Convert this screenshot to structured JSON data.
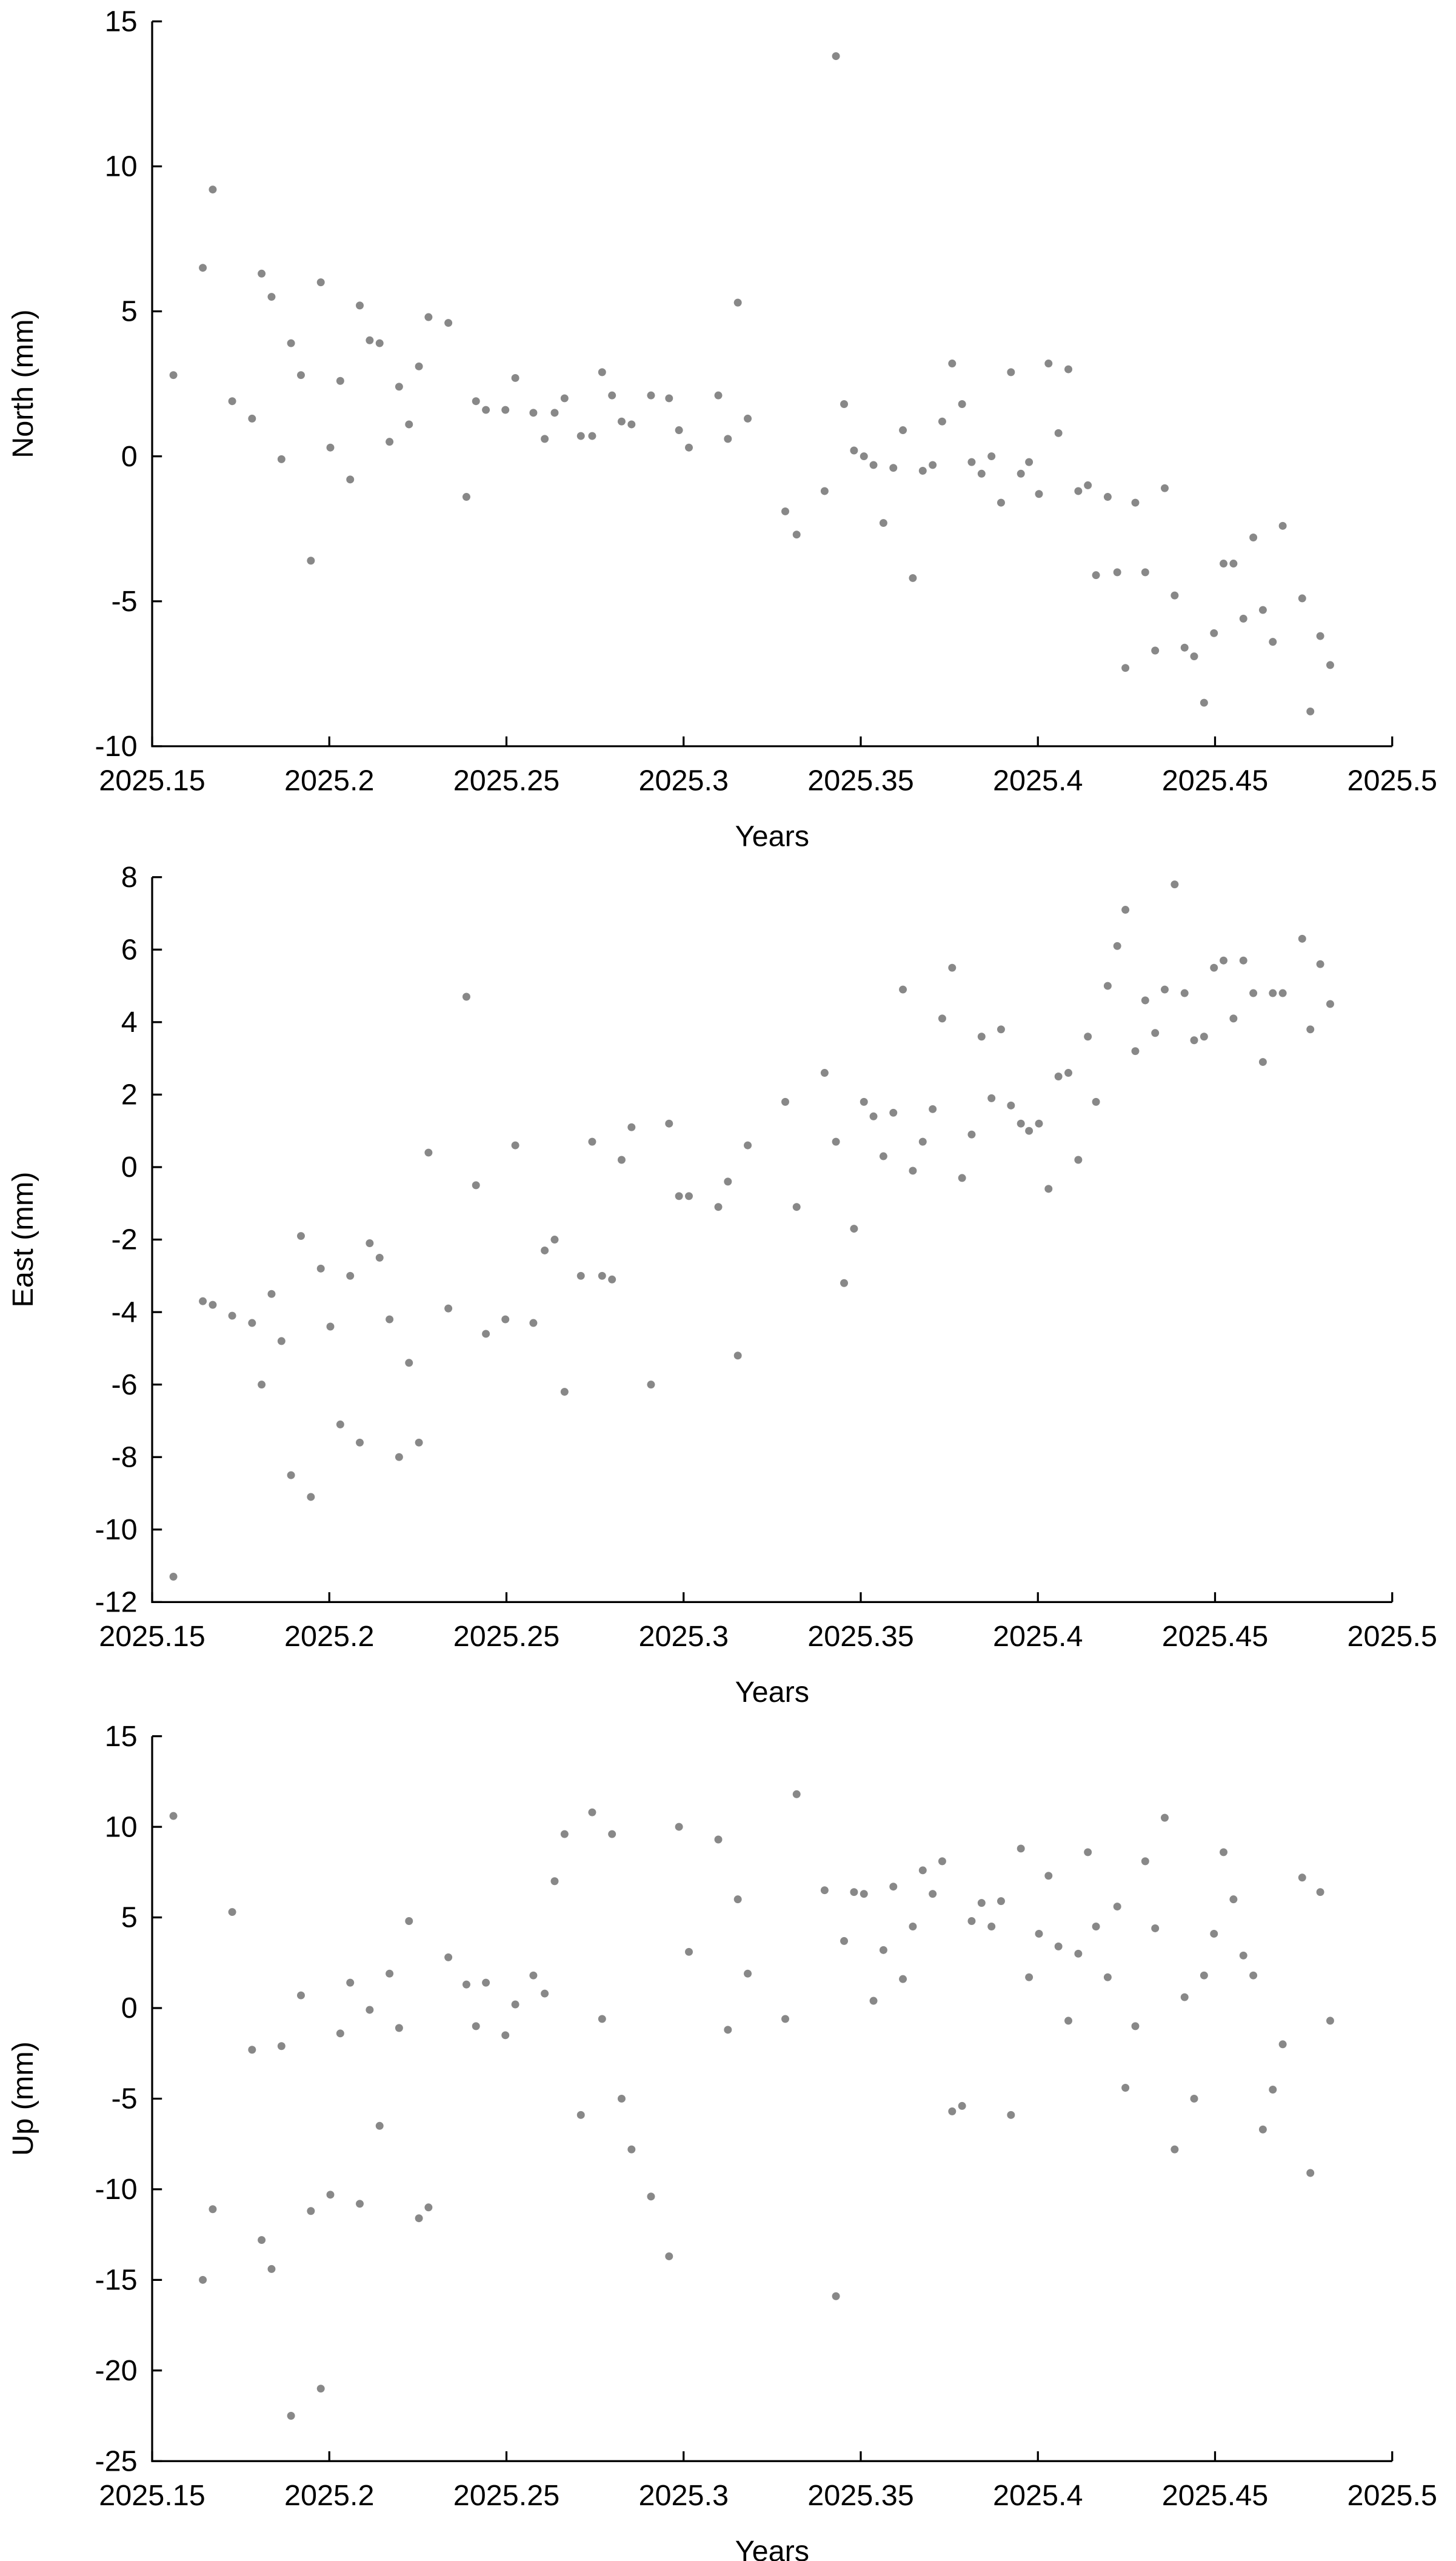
{
  "chart_data": [
    {
      "type": "scatter",
      "xlabel": "Years",
      "ylabel": "North (mm)",
      "color": "#888888",
      "xlim": [
        2025.15,
        2025.5
      ],
      "xticks": [
        2025.15,
        2025.2,
        2025.25,
        2025.3,
        2025.35,
        2025.4,
        2025.45,
        2025.5
      ],
      "ylim": [
        -10,
        15
      ],
      "yticks": [
        -10,
        -5,
        0,
        5,
        10,
        15
      ],
      "x": [
        2025.156,
        2025.1643,
        2025.1671,
        2025.1726,
        2025.1782,
        2025.1809,
        2025.1837,
        2025.1865,
        2025.1892,
        2025.192,
        2025.1948,
        2025.1976,
        2025.2003,
        2025.2031,
        2025.2059,
        2025.2086,
        2025.2114,
        2025.2142,
        2025.217,
        2025.2197,
        2025.2225,
        2025.2253,
        2025.228,
        2025.2336,
        2025.2387,
        2025.2414,
        2025.2442,
        2025.2497,
        2025.2525,
        2025.2576,
        2025.2608,
        2025.2636,
        2025.2664,
        2025.271,
        2025.2742,
        2025.277,
        2025.2798,
        2025.2825,
        2025.2853,
        2025.2908,
        2025.2959,
        2025.2987,
        2025.3015,
        2025.3098,
        2025.3125,
        2025.3153,
        2025.3181,
        2025.3287,
        2025.3319,
        2025.3398,
        2025.343,
        2025.3453,
        2025.3481,
        2025.3509,
        2025.3536,
        2025.3564,
        2025.3592,
        2025.3619,
        2025.3647,
        2025.3675,
        2025.3703,
        2025.373,
        2025.3758,
        2025.3786,
        2025.3813,
        2025.3841,
        2025.3869,
        2025.3896,
        2025.3924,
        2025.3952,
        2025.3975,
        2025.4003,
        2025.403,
        2025.4058,
        2025.4086,
        2025.4114,
        2025.4141,
        2025.4164,
        2025.4197,
        2025.4224,
        2025.4247,
        2025.4275,
        2025.4303,
        2025.4331,
        2025.4358,
        2025.4386,
        2025.4414,
        2025.4441,
        2025.4469,
        2025.4497,
        2025.4524,
        2025.4552,
        2025.458,
        2025.4608,
        2025.4635,
        2025.4663,
        2025.4691,
        2025.4746,
        2025.4769,
        2025.4797,
        2025.4825
      ],
      "values": [
        2.8,
        6.5,
        9.2,
        1.9,
        1.3,
        6.3,
        5.5,
        -0.1,
        3.9,
        2.8,
        -3.6,
        6.0,
        0.3,
        2.6,
        -0.8,
        5.2,
        4.0,
        3.9,
        0.5,
        2.4,
        1.1,
        3.1,
        4.8,
        4.6,
        -1.4,
        1.9,
        1.6,
        1.6,
        2.7,
        1.5,
        0.6,
        1.5,
        2.0,
        0.7,
        0.7,
        2.9,
        2.1,
        1.2,
        1.1,
        2.1,
        2.0,
        0.9,
        0.3,
        2.1,
        0.6,
        5.3,
        1.3,
        -1.9,
        -2.7,
        -1.2,
        13.8,
        1.8,
        0.2,
        0.0,
        -0.3,
        -2.3,
        -0.4,
        0.9,
        -4.2,
        -0.5,
        -0.3,
        1.2,
        3.2,
        1.8,
        -0.2,
        -0.6,
        0.0,
        -1.6,
        2.9,
        -0.6,
        -0.2,
        -1.3,
        3.2,
        0.8,
        3.0,
        -1.2,
        -1.0,
        -4.1,
        -1.4,
        -4.0,
        -7.3,
        -1.6,
        -4.0,
        -6.7,
        -1.1,
        -4.8,
        -6.6,
        -6.9,
        -8.5,
        -6.1,
        -3.7,
        -3.7,
        -5.6,
        -2.8,
        -5.3,
        -6.4,
        -2.4,
        -4.9,
        -8.8,
        -6.2,
        -7.2
      ]
    },
    {
      "type": "scatter",
      "xlabel": "Years",
      "ylabel": "East (mm)",
      "color": "#888888",
      "xlim": [
        2025.15,
        2025.5
      ],
      "xticks": [
        2025.15,
        2025.2,
        2025.25,
        2025.3,
        2025.35,
        2025.4,
        2025.45,
        2025.5
      ],
      "ylim": [
        -12,
        8
      ],
      "yticks": [
        -12,
        -10,
        -8,
        -6,
        -4,
        -2,
        0,
        2,
        4,
        6,
        8
      ],
      "x": [
        2025.156,
        2025.1643,
        2025.1671,
        2025.1726,
        2025.1782,
        2025.1809,
        2025.1837,
        2025.1865,
        2025.1892,
        2025.192,
        2025.1948,
        2025.1976,
        2025.2003,
        2025.2031,
        2025.2059,
        2025.2086,
        2025.2114,
        2025.2142,
        2025.217,
        2025.2197,
        2025.2225,
        2025.2253,
        2025.228,
        2025.2336,
        2025.2387,
        2025.2414,
        2025.2442,
        2025.2497,
        2025.2525,
        2025.2576,
        2025.2608,
        2025.2636,
        2025.2664,
        2025.271,
        2025.2742,
        2025.277,
        2025.2798,
        2025.2825,
        2025.2853,
        2025.2908,
        2025.2959,
        2025.2987,
        2025.3015,
        2025.3098,
        2025.3125,
        2025.3153,
        2025.3181,
        2025.3287,
        2025.3319,
        2025.3398,
        2025.343,
        2025.3453,
        2025.3481,
        2025.3509,
        2025.3536,
        2025.3564,
        2025.3592,
        2025.3619,
        2025.3647,
        2025.3675,
        2025.3703,
        2025.373,
        2025.3758,
        2025.3786,
        2025.3813,
        2025.3841,
        2025.3869,
        2025.3896,
        2025.3924,
        2025.3952,
        2025.3975,
        2025.4003,
        2025.403,
        2025.4058,
        2025.4086,
        2025.4114,
        2025.4141,
        2025.4164,
        2025.4197,
        2025.4224,
        2025.4247,
        2025.4275,
        2025.4303,
        2025.4331,
        2025.4358,
        2025.4386,
        2025.4414,
        2025.4441,
        2025.4469,
        2025.4497,
        2025.4524,
        2025.4552,
        2025.458,
        2025.4608,
        2025.4635,
        2025.4663,
        2025.4691,
        2025.4746,
        2025.4769,
        2025.4797,
        2025.4825
      ],
      "values": [
        -11.3,
        -3.7,
        -3.8,
        -4.1,
        -4.3,
        -6.0,
        -3.5,
        -4.8,
        -8.5,
        -1.9,
        -9.1,
        -2.8,
        -4.4,
        -7.1,
        -3.0,
        -7.6,
        -2.1,
        -2.5,
        -4.2,
        -8.0,
        -5.4,
        -7.6,
        0.4,
        -3.9,
        4.7,
        -0.5,
        -4.6,
        -4.2,
        0.6,
        -4.3,
        -2.3,
        -2.0,
        -6.2,
        -3.0,
        0.7,
        -3.0,
        -3.1,
        0.2,
        1.1,
        -6.0,
        1.2,
        -0.8,
        -0.8,
        -1.1,
        -0.4,
        -5.2,
        0.6,
        1.8,
        -1.1,
        2.6,
        0.7,
        -3.2,
        -1.7,
        1.8,
        1.4,
        0.3,
        1.5,
        4.9,
        -0.1,
        0.7,
        1.6,
        4.1,
        5.5,
        -0.3,
        0.9,
        3.6,
        1.9,
        3.8,
        1.7,
        1.2,
        1.0,
        1.2,
        -0.6,
        2.5,
        2.6,
        0.2,
        3.6,
        1.8,
        5.0,
        6.1,
        7.1,
        3.2,
        4.6,
        3.7,
        4.9,
        7.8,
        4.8,
        3.5,
        3.6,
        5.5,
        5.7,
        4.1,
        5.7,
        4.8,
        2.9,
        4.8,
        4.8,
        6.3,
        3.8,
        5.6,
        4.5
      ]
    },
    {
      "type": "scatter",
      "xlabel": "Years",
      "ylabel": "Up (mm)",
      "color": "#888888",
      "xlim": [
        2025.15,
        2025.5
      ],
      "xticks": [
        2025.15,
        2025.2,
        2025.25,
        2025.3,
        2025.35,
        2025.4,
        2025.45,
        2025.5
      ],
      "ylim": [
        -25,
        15
      ],
      "yticks": [
        -25,
        -20,
        -15,
        -10,
        -5,
        0,
        5,
        10,
        15
      ],
      "x": [
        2025.156,
        2025.1643,
        2025.1671,
        2025.1726,
        2025.1782,
        2025.1809,
        2025.1837,
        2025.1865,
        2025.1892,
        2025.192,
        2025.1948,
        2025.1976,
        2025.2003,
        2025.2031,
        2025.2059,
        2025.2086,
        2025.2114,
        2025.2142,
        2025.217,
        2025.2197,
        2025.2225,
        2025.2253,
        2025.228,
        2025.2336,
        2025.2387,
        2025.2414,
        2025.2442,
        2025.2497,
        2025.2525,
        2025.2576,
        2025.2608,
        2025.2636,
        2025.2664,
        2025.271,
        2025.2742,
        2025.277,
        2025.2798,
        2025.2825,
        2025.2853,
        2025.2908,
        2025.2959,
        2025.2987,
        2025.3015,
        2025.3098,
        2025.3125,
        2025.3153,
        2025.3181,
        2025.3287,
        2025.3319,
        2025.3398,
        2025.343,
        2025.3453,
        2025.3481,
        2025.3509,
        2025.3536,
        2025.3564,
        2025.3592,
        2025.3619,
        2025.3647,
        2025.3675,
        2025.3703,
        2025.373,
        2025.3758,
        2025.3786,
        2025.3813,
        2025.3841,
        2025.3869,
        2025.3896,
        2025.3924,
        2025.3952,
        2025.3975,
        2025.4003,
        2025.403,
        2025.4058,
        2025.4086,
        2025.4114,
        2025.4141,
        2025.4164,
        2025.4197,
        2025.4224,
        2025.4247,
        2025.4275,
        2025.4303,
        2025.4331,
        2025.4358,
        2025.4386,
        2025.4414,
        2025.4441,
        2025.4469,
        2025.4497,
        2025.4524,
        2025.4552,
        2025.458,
        2025.4608,
        2025.4635,
        2025.4663,
        2025.4691,
        2025.4746,
        2025.4769,
        2025.4797,
        2025.4825
      ],
      "values": [
        10.6,
        -15.0,
        -11.1,
        5.3,
        -2.3,
        -12.8,
        -14.4,
        -2.1,
        -22.5,
        0.7,
        -11.2,
        -21.0,
        -10.3,
        -1.4,
        1.4,
        -10.8,
        -0.1,
        -6.5,
        1.9,
        -1.1,
        4.8,
        -11.6,
        -11.0,
        2.8,
        1.3,
        -1.0,
        1.4,
        -1.5,
        0.2,
        1.8,
        0.8,
        7.0,
        9.6,
        -5.9,
        10.8,
        -0.6,
        9.6,
        -5.0,
        -7.8,
        -10.4,
        -13.7,
        10.0,
        3.1,
        9.3,
        -1.2,
        6.0,
        1.9,
        -0.6,
        11.8,
        6.5,
        -15.9,
        3.7,
        6.4,
        6.3,
        0.4,
        3.2,
        6.7,
        1.6,
        4.5,
        7.6,
        6.3,
        8.1,
        -5.7,
        -5.4,
        4.8,
        5.8,
        4.5,
        5.9,
        -5.9,
        8.8,
        1.7,
        4.1,
        7.3,
        3.4,
        -0.7,
        3.0,
        8.6,
        4.5,
        1.7,
        5.6,
        -4.4,
        -1.0,
        8.1,
        4.4,
        10.5,
        -7.8,
        0.6,
        -5.0,
        1.8,
        4.1,
        8.6,
        6.0,
        2.9,
        1.8,
        -6.7,
        -4.5,
        -2.0,
        7.2,
        -9.1,
        6.4,
        -0.7
      ]
    }
  ]
}
